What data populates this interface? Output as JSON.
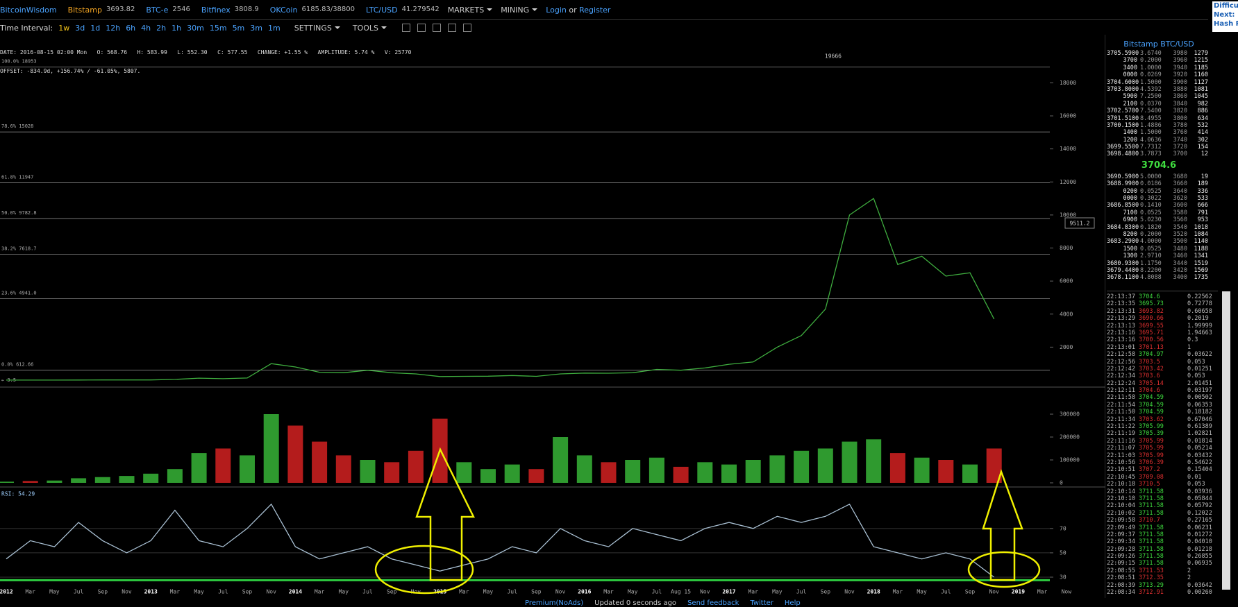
{
  "header": {
    "brand": "BitcoinWisdom",
    "tickers": [
      {
        "name": "Bitstamp",
        "price": "3693.82"
      },
      {
        "name": "BTC-e",
        "price": "2546"
      },
      {
        "name": "Bitfinex",
        "price": "3808.9"
      },
      {
        "name": "OKCoin",
        "price": "6185.83/38800"
      },
      {
        "name": "LTC/USD",
        "price": "41.279542"
      }
    ],
    "menus": [
      "MARKETS",
      "MINING"
    ],
    "login": "Login",
    "or": "or",
    "register": "Register",
    "side": [
      "Difficu",
      "Next:",
      "Hash R"
    ]
  },
  "toolbar": {
    "label": "Time Interval:",
    "intervals": [
      "1w",
      "3d",
      "1d",
      "12h",
      "6h",
      "4h",
      "2h",
      "1h",
      "30m",
      "15m",
      "5m",
      "3m",
      "1m"
    ],
    "menus": [
      "SETTINGS",
      "TOOLS"
    ]
  },
  "info": [
    "DATE: 2016-08-15 02:00 Mon   O: 568.76   H: 583.99   L: 552.30   C: 577.55   CHANGE: +1.55 %   AMPLITUDE: 5.74 %   V: 25770",
    "OFFSET: -834.9d, +156.74% / -61.05%, 5807."
  ],
  "chart_data": [
    {
      "type": "line",
      "color": "#3fae3f",
      "values": [
        6,
        5,
        5,
        8,
        11,
        12,
        14,
        47,
        120,
        90,
        130,
        1000,
        800,
        480,
        450,
        600,
        450,
        380,
        220,
        230,
        240,
        280,
        230,
        380,
        430,
        420,
        450,
        650,
        600,
        740,
        960,
        1100,
        2000,
        2700,
        4300,
        10000,
        11000,
        7000,
        7500,
        6300,
        6500,
        3700,
        null,
        null,
        null
      ],
      "ylim": [
        0,
        20000
      ],
      "yticks": [
        2000,
        4000,
        6000,
        8000,
        10000,
        12000,
        14000,
        16000,
        18000
      ],
      "levels": [
        {
          "value": 18953,
          "label": "100.0% 18953"
        },
        {
          "value": 15028,
          "label": "78.6% 15028"
        },
        {
          "value": 11947,
          "label": "61.8% 11947"
        },
        {
          "value": 9782.8,
          "label": "50.0% 9782.8"
        },
        {
          "value": 7618.7,
          "label": "38.2% 7618.7"
        },
        {
          "value": 4941,
          "label": "23.6% 4941.0"
        },
        {
          "value": 612.66,
          "label": "0.0% 612.66"
        }
      ],
      "peak_label": "19666",
      "cursor_label": "9511.2",
      "min_label": "← 3.5"
    },
    {
      "type": "bar",
      "up_color": "#2f9a2f",
      "down_color": "#b41c1c",
      "values": [
        5000,
        8000,
        10000,
        20000,
        25000,
        30000,
        40000,
        60000,
        130000,
        150000,
        120000,
        300000,
        250000,
        180000,
        120000,
        100000,
        90000,
        140000,
        280000,
        90000,
        60000,
        80000,
        60000,
        200000,
        120000,
        90000,
        100000,
        110000,
        70000,
        90000,
        80000,
        100000,
        120000,
        140000,
        150000,
        180000,
        190000,
        130000,
        110000,
        100000,
        80000,
        150000,
        null,
        null,
        null
      ],
      "ylim": [
        0,
        400000
      ],
      "yticks": [
        0,
        100000,
        200000,
        300000
      ]
    },
    {
      "type": "line",
      "title": "RSI: 54.29",
      "color": "#a9c0d3",
      "categories": [
        "2012",
        "Mar",
        "May",
        "Jul",
        "Sep",
        "Nov",
        "2013",
        "Mar",
        "May",
        "Jul",
        "Sep",
        "Nov",
        "2014",
        "Mar",
        "May",
        "Jul",
        "Sep",
        "Nov",
        "2015",
        "Mar",
        "May",
        "Jul",
        "Sep",
        "Nov",
        "2016",
        "Mar",
        "May",
        "Jul",
        "Aug 15",
        "Nov",
        "2017",
        "Mar",
        "May",
        "Jul",
        "Sep",
        "Nov",
        "2018",
        "Mar",
        "May",
        "Jul",
        "Sep",
        "Nov",
        "2019",
        "Mar",
        "Now"
      ],
      "values": [
        45,
        60,
        55,
        75,
        60,
        50,
        60,
        85,
        60,
        55,
        70,
        90,
        55,
        45,
        50,
        55,
        45,
        40,
        35,
        40,
        45,
        55,
        50,
        70,
        60,
        55,
        70,
        65,
        60,
        70,
        75,
        70,
        80,
        75,
        80,
        90,
        55,
        50,
        45,
        50,
        45,
        30,
        null,
        null,
        null
      ],
      "ylim": [
        25,
        95
      ],
      "yticks": [
        30,
        50,
        70
      ],
      "hline": 27.5,
      "hline_color": "#2ecc40"
    }
  ],
  "orderbook": {
    "title": "Bitstamp BTC/USD",
    "asks": [
      [
        "3705.5900",
        "3.6740",
        "3980",
        "1279"
      ],
      [
        "3700",
        "0.2000",
        "3960",
        "1215"
      ],
      [
        "3400",
        "1.0000",
        "3940",
        "1185"
      ],
      [
        "0000",
        "0.0269",
        "3920",
        "1160"
      ],
      [
        "3704.6000",
        "1.5000",
        "3900",
        "1127"
      ],
      [
        "3703.8000",
        "4.5392",
        "3880",
        "1081"
      ],
      [
        "5900",
        "7.2500",
        "3860",
        "1045"
      ],
      [
        "2100",
        "0.0370",
        "3840",
        "982"
      ],
      [
        "3702.5700",
        "7.5400",
        "3820",
        "886"
      ],
      [
        "3701.5100",
        "8.4955",
        "3800",
        "634"
      ],
      [
        "3700.1500",
        "1.4886",
        "3780",
        "532"
      ],
      [
        "1400",
        "1.5000",
        "3760",
        "414"
      ],
      [
        "1200",
        "4.0636",
        "3740",
        "302"
      ],
      [
        "3699.5500",
        "7.7312",
        "3720",
        "154"
      ],
      [
        "3698.4800",
        "3.7873",
        "3700",
        "12"
      ]
    ],
    "last": "3704.6",
    "bids": [
      [
        "3690.5900",
        "5.0000",
        "3680",
        "19"
      ],
      [
        "3688.9900",
        "0.0186",
        "3660",
        "189"
      ],
      [
        "0200",
        "0.0525",
        "3640",
        "336"
      ],
      [
        "0000",
        "0.3022",
        "3620",
        "533"
      ],
      [
        "3686.8500",
        "0.1410",
        "3600",
        "666"
      ],
      [
        "7100",
        "0.0525",
        "3580",
        "791"
      ],
      [
        "6900",
        "5.0230",
        "3560",
        "953"
      ],
      [
        "3684.8300",
        "0.1820",
        "3540",
        "1018"
      ],
      [
        "8200",
        "0.2000",
        "3520",
        "1084"
      ],
      [
        "3683.2900",
        "4.0000",
        "3500",
        "1140"
      ],
      [
        "1500",
        "0.0525",
        "3480",
        "1188"
      ],
      [
        "1300",
        "2.9710",
        "3460",
        "1341"
      ],
      [
        "3680.9300",
        "1.1750",
        "3440",
        "1519"
      ],
      [
        "3679.4400",
        "8.2200",
        "3420",
        "1569"
      ],
      [
        "3678.1100",
        "4.8088",
        "3400",
        "1735"
      ]
    ]
  },
  "trades": [
    {
      "time": "22:13:37",
      "price": "3704.6",
      "amount": "0.22562",
      "color": "green"
    },
    {
      "time": "22:13:35",
      "price": "3695.73",
      "amount": "0.72778",
      "color": "green"
    },
    {
      "time": "22:13:31",
      "price": "3693.82",
      "amount": "0.60658",
      "color": "red"
    },
    {
      "time": "22:13:29",
      "price": "3690.66",
      "amount": "0.2019",
      "color": "red"
    },
    {
      "time": "22:13:13",
      "price": "3699.55",
      "amount": "1.99999",
      "color": "red"
    },
    {
      "time": "22:13:16",
      "price": "3695.71",
      "amount": "1.94663",
      "color": "red"
    },
    {
      "time": "22:13:16",
      "price": "3700.56",
      "amount": "0.3",
      "color": "red"
    },
    {
      "time": "22:13:01",
      "price": "3701.13",
      "amount": "1",
      "color": "red"
    },
    {
      "time": "22:12:58",
      "price": "3704.97",
      "amount": "0.03622",
      "color": "green"
    },
    {
      "time": "22:12:56",
      "price": "3703.5",
      "amount": "0.053",
      "color": "red"
    },
    {
      "time": "22:12:42",
      "price": "3703.42",
      "amount": "0.01251",
      "color": "red"
    },
    {
      "time": "22:12:34",
      "price": "3703.6",
      "amount": "0.053",
      "color": "red"
    },
    {
      "time": "22:12:24",
      "price": "3705.14",
      "amount": "2.01451",
      "color": "red"
    },
    {
      "time": "22:12:11",
      "price": "3704.6",
      "amount": "0.03197",
      "color": "red"
    },
    {
      "time": "22:11:58",
      "price": "3704.59",
      "amount": "0.00502",
      "color": "green"
    },
    {
      "time": "22:11:54",
      "price": "3704.59",
      "amount": "0.06353",
      "color": "green"
    },
    {
      "time": "22:11:50",
      "price": "3704.59",
      "amount": "0.18182",
      "color": "green"
    },
    {
      "time": "22:11:34",
      "price": "3703.62",
      "amount": "0.67046",
      "color": "red"
    },
    {
      "time": "22:11:22",
      "price": "3705.99",
      "amount": "0.61389",
      "color": "green"
    },
    {
      "time": "22:11:19",
      "price": "3705.39",
      "amount": "1.02821",
      "color": "green"
    },
    {
      "time": "22:11:16",
      "price": "3705.99",
      "amount": "0.01814",
      "color": "red"
    },
    {
      "time": "22:11:07",
      "price": "3705.99",
      "amount": "0.05214",
      "color": "red"
    },
    {
      "time": "22:11:03",
      "price": "3705.99",
      "amount": "0.03432",
      "color": "red"
    },
    {
      "time": "22:10:56",
      "price": "3706.39",
      "amount": "0.54622",
      "color": "red"
    },
    {
      "time": "22:10:51",
      "price": "3707.2",
      "amount": "0.15404",
      "color": "red"
    },
    {
      "time": "22:10:45",
      "price": "3709.08",
      "amount": "0.01",
      "color": "red"
    },
    {
      "time": "22:10:18",
      "price": "3710.5",
      "amount": "0.053",
      "color": "red"
    },
    {
      "time": "22:10:14",
      "price": "3711.58",
      "amount": "0.03936",
      "color": "green"
    },
    {
      "time": "22:10:10",
      "price": "3711.58",
      "amount": "0.05844",
      "color": "green"
    },
    {
      "time": "22:10:04",
      "price": "3711.58",
      "amount": "0.05792",
      "color": "green"
    },
    {
      "time": "22:10:02",
      "price": "3711.58",
      "amount": "0.12022",
      "color": "green"
    },
    {
      "time": "22:09:58",
      "price": "3710.7",
      "amount": "0.27165",
      "color": "red"
    },
    {
      "time": "22:09:49",
      "price": "3711.58",
      "amount": "0.06231",
      "color": "green"
    },
    {
      "time": "22:09:37",
      "price": "3711.58",
      "amount": "0.01272",
      "color": "green"
    },
    {
      "time": "22:09:34",
      "price": "3711.58",
      "amount": "0.04010",
      "color": "green"
    },
    {
      "time": "22:09:28",
      "price": "3711.58",
      "amount": "0.01218",
      "color": "green"
    },
    {
      "time": "22:09:26",
      "price": "3711.58",
      "amount": "0.26855",
      "color": "green"
    },
    {
      "time": "22:09:15",
      "price": "3711.58",
      "amount": "0.06935",
      "color": "green"
    },
    {
      "time": "22:08:55",
      "price": "3711.53",
      "amount": "2",
      "color": "red"
    },
    {
      "time": "22:08:51",
      "price": "3712.35",
      "amount": "2",
      "color": "red"
    },
    {
      "time": "22:08:39",
      "price": "3713.29",
      "amount": "0.03642",
      "color": "green"
    },
    {
      "time": "22:08:34",
      "price": "3712.91",
      "amount": "0.00260",
      "color": "red"
    }
  ],
  "footer": [
    "Premium(NoAds)",
    "Updated 0 seconds ago",
    "Send feedback",
    "Twitter",
    "Help"
  ]
}
